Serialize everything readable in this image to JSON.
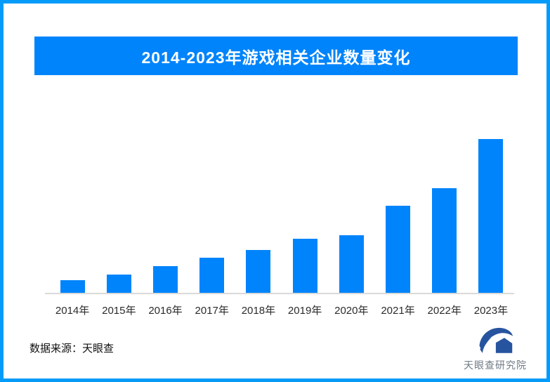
{
  "page": {
    "background": "#ffffff",
    "border_color": "#049cf8"
  },
  "title_banner": {
    "text": "2014-2023年游戏相关企业数量变化",
    "bg_color": "#0084fb",
    "text_color": "#ffffff"
  },
  "chart_data": {
    "type": "bar",
    "title": "2014-2023年游戏相关企业数量变化",
    "categories": [
      "2014年",
      "2015年",
      "2016年",
      "2017年",
      "2018年",
      "2019年",
      "2020年",
      "2021年",
      "2022年",
      "2023年"
    ],
    "values": [
      19,
      27,
      39,
      51,
      62,
      78,
      83,
      125,
      150,
      220
    ],
    "xlabel": "",
    "ylabel": "",
    "ylim": [
      0,
      230
    ],
    "grid": false,
    "legend_shown": false,
    "value_labels_shown": false,
    "bar_color": "#0084fb",
    "axis_line_color": "#d9d9d9"
  },
  "footer": {
    "source_text": "数据来源：天眼查",
    "logo": {
      "text": "天眼查研究院",
      "icon": "tianyancha-logo-icon",
      "icon_color": "#27549f",
      "text_color": "#6f7a85"
    }
  }
}
